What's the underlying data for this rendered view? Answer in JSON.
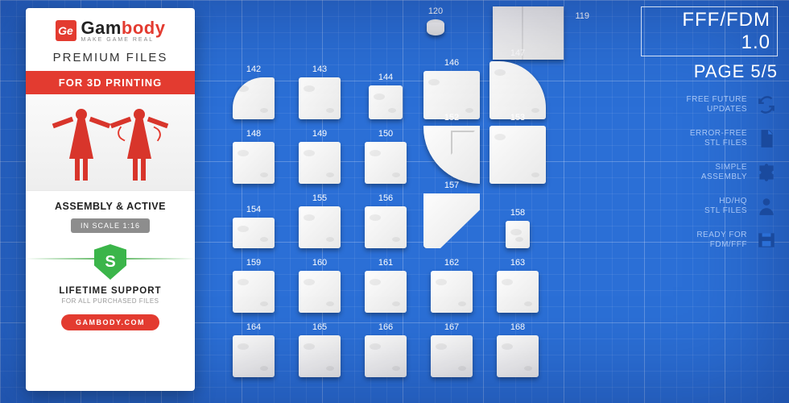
{
  "header": {
    "format": "FFF/FDM 1.0",
    "page": "PAGE 5/5"
  },
  "brand": {
    "logo_badge": "Ge",
    "name_a": "Gam",
    "name_b": "body",
    "tagline": "MAKE GAME REAL",
    "premium": "PREMIUM FILES",
    "band": "FOR 3D PRINTING",
    "mode": "ASSEMBLY & ACTIVE",
    "scale": "IN SCALE 1:16",
    "shield": "S",
    "support": "LIFETIME SUPPORT",
    "support_sub": "FOR ALL PURCHASED FILES",
    "site": "GAMBODY.COM"
  },
  "features": [
    {
      "l1": "FREE FUTURE",
      "l2": "UPDATES",
      "icon": "refresh"
    },
    {
      "l1": "ERROR-FREE",
      "l2": "STL FILES",
      "icon": "file"
    },
    {
      "l1": "SIMPLE",
      "l2": "ASSEMBLY",
      "icon": "puzzle"
    },
    {
      "l1": "HD/HQ",
      "l2": "STL FILES",
      "icon": "person"
    },
    {
      "l1": "READY FOR",
      "l2": "FDM/FFF",
      "icon": "printer"
    }
  ],
  "top_parts": [
    {
      "n": "120",
      "shape": "cylinder"
    },
    {
      "n": "119",
      "shape": "panel119"
    }
  ],
  "rows": [
    [
      {
        "n": "142",
        "cls": "part corner-tl"
      },
      {
        "n": "143",
        "cls": "part"
      },
      {
        "n": "144",
        "cls": "part sm"
      },
      {
        "n": "146",
        "cls": "part panel146"
      },
      {
        "n": "147",
        "cls": "part big corner-tr"
      }
    ],
    [
      {
        "n": "148",
        "cls": "part"
      },
      {
        "n": "149",
        "cls": "part"
      },
      {
        "n": "150",
        "cls": "part"
      },
      {
        "n": "152",
        "cls": "quarter"
      },
      {
        "n": "153",
        "cls": "part big"
      }
    ],
    [
      {
        "n": "154",
        "cls": "part strip"
      },
      {
        "n": "155",
        "cls": "part"
      },
      {
        "n": "156",
        "cls": "part"
      },
      {
        "n": "157",
        "cls": "curve"
      },
      {
        "n": "158",
        "cls": "part tiny"
      }
    ],
    [
      {
        "n": "159",
        "cls": "part"
      },
      {
        "n": "160",
        "cls": "part"
      },
      {
        "n": "161",
        "cls": "part"
      },
      {
        "n": "162",
        "cls": "part"
      },
      {
        "n": "163",
        "cls": "part"
      }
    ],
    [
      {
        "n": "164",
        "cls": "part"
      },
      {
        "n": "165",
        "cls": "part"
      },
      {
        "n": "166",
        "cls": "part"
      },
      {
        "n": "167",
        "cls": "part"
      },
      {
        "n": "168",
        "cls": "part"
      }
    ]
  ],
  "colors": {
    "accent": "#e33b30",
    "bg": "#2b6fd6",
    "shield": "#3bb54a"
  }
}
